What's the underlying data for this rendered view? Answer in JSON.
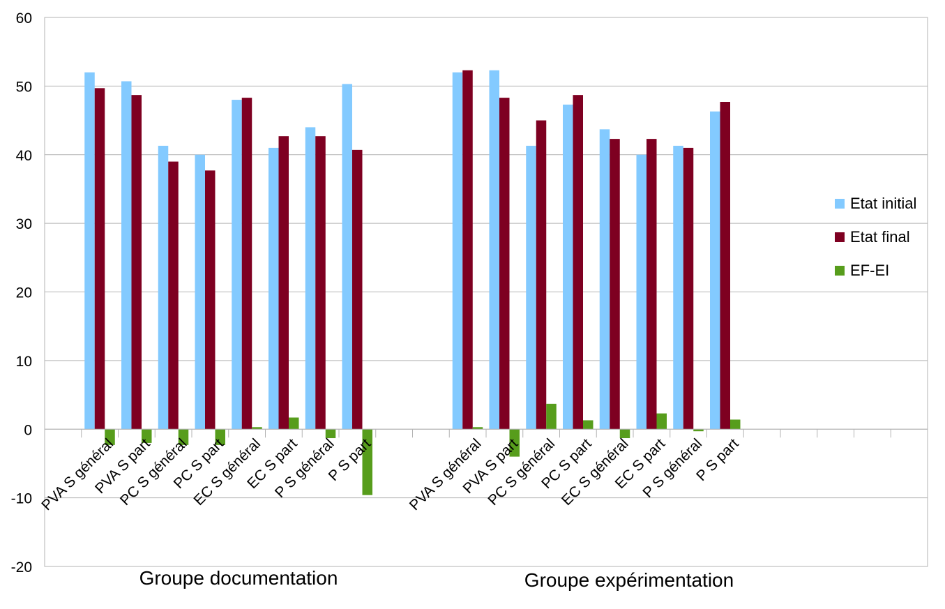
{
  "chart_data": {
    "type": "bar",
    "ylim": [
      -20,
      60
    ],
    "yticks": [
      -20,
      -10,
      0,
      10,
      20,
      30,
      40,
      50,
      60
    ],
    "grid": true,
    "legend_position": "right",
    "categories": [
      "",
      "PVA S général",
      "PVA S part",
      "PC S général",
      "PC S part",
      "EC S général",
      "EC S part",
      "P S général",
      "P S part",
      "",
      "",
      "PVA S général",
      "PVA S part",
      "PC S général",
      "PC S part",
      "EC S général",
      "EC S part",
      "P S général",
      "P S part",
      "",
      "",
      "",
      "",
      ""
    ],
    "groups": [
      {
        "label": "Groupe documentation"
      },
      {
        "label": "Groupe expérimentation"
      }
    ],
    "series": [
      {
        "name": "Etat initial",
        "color": "#83caff",
        "values": [
          null,
          52.0,
          50.7,
          41.3,
          40.0,
          48.0,
          41.0,
          44.0,
          50.3,
          null,
          null,
          52.0,
          52.3,
          41.3,
          47.3,
          43.7,
          40.0,
          41.3,
          46.3,
          null,
          null,
          null,
          null,
          null
        ]
      },
      {
        "name": "Etat final",
        "color": "#7e0021",
        "values": [
          null,
          49.7,
          48.7,
          39.0,
          37.7,
          48.3,
          42.7,
          42.7,
          40.7,
          null,
          null,
          52.3,
          48.3,
          45.0,
          48.7,
          42.3,
          42.3,
          41.0,
          47.7,
          null,
          null,
          null,
          null,
          null
        ]
      },
      {
        "name": "EF-EI",
        "color": "#579d1c",
        "values": [
          null,
          -2.3,
          -2.0,
          -2.3,
          -2.3,
          0.3,
          1.7,
          -1.3,
          -9.6,
          null,
          null,
          0.3,
          -4.0,
          3.7,
          1.3,
          -1.3,
          2.3,
          -0.3,
          1.4,
          null,
          null,
          null,
          null,
          null
        ]
      }
    ]
  }
}
